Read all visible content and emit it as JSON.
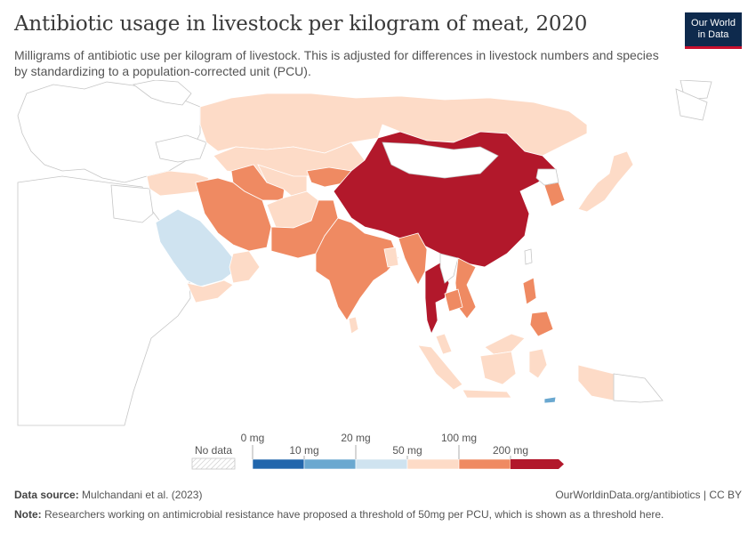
{
  "header": {
    "title": "Antibiotic usage in livestock per kilogram of meat, 2020",
    "subtitle": "Milligrams of antibiotic use per kilogram of livestock. This is adjusted for differences in livestock numbers and species by standardizing to a population-corrected unit (PCU).",
    "logo_line1": "Our World",
    "logo_line2": "in Data"
  },
  "legend": {
    "no_data_label": "No data",
    "ticks": [
      "0 mg",
      "10 mg",
      "20 mg",
      "50 mg",
      "100 mg",
      "200 mg"
    ],
    "colors": {
      "0-10": "#2166ac",
      "10-20": "#6aa8d0",
      "20-50": "#cfe3f0",
      "50-100": "#fddbc7",
      "100-200": "#ef8a62",
      "200+": "#b2182b",
      "no_data": "#ffffff"
    }
  },
  "map_data": {
    "regions": [
      {
        "name": "China",
        "bin": "200+"
      },
      {
        "name": "Thailand",
        "bin": "200+"
      },
      {
        "name": "Myanmar",
        "bin": "100-200"
      },
      {
        "name": "India",
        "bin": "100-200"
      },
      {
        "name": "Pakistan",
        "bin": "100-200"
      },
      {
        "name": "Iran",
        "bin": "100-200"
      },
      {
        "name": "Turkmenistan",
        "bin": "100-200"
      },
      {
        "name": "Kyrgyzstan",
        "bin": "100-200"
      },
      {
        "name": "South Korea",
        "bin": "100-200"
      },
      {
        "name": "Vietnam",
        "bin": "100-200"
      },
      {
        "name": "Cambodia",
        "bin": "100-200"
      },
      {
        "name": "Philippines",
        "bin": "100-200"
      },
      {
        "name": "Russia",
        "bin": "50-100"
      },
      {
        "name": "Kazakhstan",
        "bin": "50-100"
      },
      {
        "name": "Uzbekistan",
        "bin": "50-100"
      },
      {
        "name": "Afghanistan",
        "bin": "50-100"
      },
      {
        "name": "Turkey",
        "bin": "50-100"
      },
      {
        "name": "Japan",
        "bin": "50-100"
      },
      {
        "name": "Indonesia",
        "bin": "50-100"
      },
      {
        "name": "Malaysia",
        "bin": "50-100"
      },
      {
        "name": "Oman",
        "bin": "50-100"
      },
      {
        "name": "Yemen",
        "bin": "50-100"
      },
      {
        "name": "Sri Lanka",
        "bin": "50-100"
      },
      {
        "name": "Bangladesh",
        "bin": "50-100"
      },
      {
        "name": "Saudi Arabia",
        "bin": "20-50"
      },
      {
        "name": "Timor-Leste",
        "bin": "10-20"
      }
    ]
  },
  "footer": {
    "source_label": "Data source:",
    "source_text": "Mulchandani et al. (2023)",
    "site": "OurWorldinData.org/antibiotics | CC BY",
    "note_label": "Note:",
    "note_text": "Researchers working on antimicrobial resistance have proposed a threshold of 50mg per PCU, which is shown as a threshold here."
  }
}
